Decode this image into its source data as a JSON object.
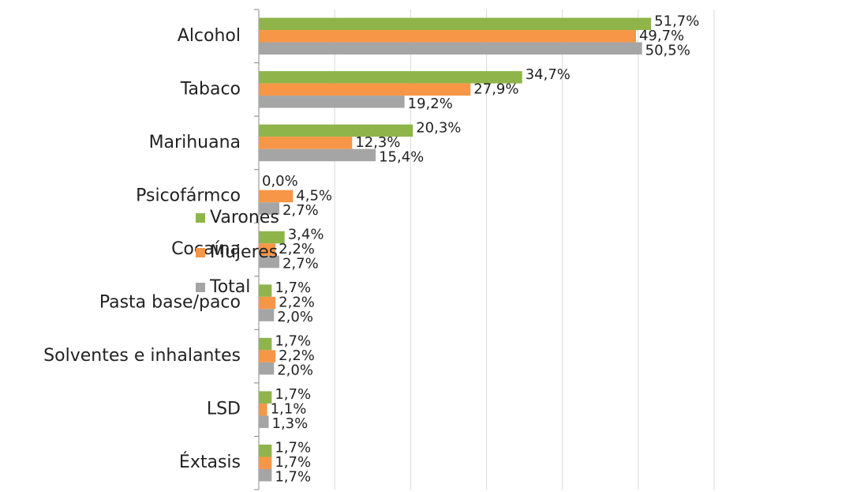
{
  "chart_data": {
    "type": "bar",
    "orientation": "horizontal",
    "categories": [
      "Alcohol",
      "Tabaco",
      "Marihuana",
      "Psicofármco",
      "Cocaína",
      "Pasta base/paco",
      "Solventes e inhalantes",
      "LSD",
      "Éxtasis"
    ],
    "series": [
      {
        "name": "Varones",
        "color": "#8fb54a",
        "values": [
          51.7,
          34.7,
          20.3,
          0.0,
          3.4,
          1.7,
          1.7,
          1.7,
          1.7
        ],
        "value_labels": [
          "51,7%",
          "34,7%",
          "20,3%",
          "0,0%",
          "3,4%",
          "1,7%",
          "1,7%",
          "1,7%",
          "1,7%"
        ]
      },
      {
        "name": "Mujeres",
        "color": "#f79646",
        "values": [
          49.7,
          27.9,
          12.3,
          4.5,
          2.2,
          2.2,
          2.2,
          1.1,
          1.7
        ],
        "value_labels": [
          "49,7%",
          "27,9%",
          "12,3%",
          "4,5%",
          "2,2%",
          "2,2%",
          "2,2%",
          "1,1%",
          "1,7%"
        ]
      },
      {
        "name": "Total",
        "color": "#a5a5a5",
        "values": [
          50.5,
          19.2,
          15.4,
          2.7,
          2.7,
          2.0,
          2.0,
          1.3,
          1.7
        ],
        "value_labels": [
          "50,5%",
          "19,2%",
          "15,4%",
          "2,7%",
          "2,7%",
          "2,0%",
          "2,0%",
          "1,3%",
          "1,7%"
        ]
      }
    ],
    "xlim": [
      0,
      60
    ],
    "xticks": [
      0,
      10,
      20,
      30,
      40,
      50,
      60
    ],
    "grid": true,
    "legend": "right"
  }
}
